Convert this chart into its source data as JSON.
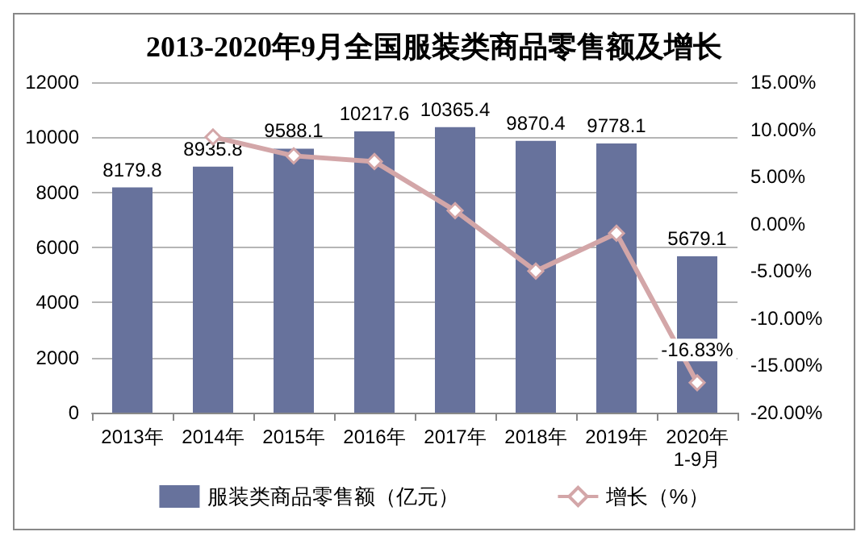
{
  "chart_data": {
    "type": "bar",
    "title": "2013-2020年9月全国服装类商品零售额及增长",
    "categories": [
      "2013年",
      "2014年",
      "2015年",
      "2016年",
      "2017年",
      "2018年",
      "2019年",
      "2020年\n1-9月"
    ],
    "series": [
      {
        "name": "服装类商品零售额（亿元）",
        "color": "#67729c",
        "values": [
          8179.8,
          8935.8,
          9588.1,
          10217.6,
          10365.4,
          9870.4,
          9778.1,
          5679.1
        ],
        "value_labels": [
          "8179.8",
          "8935.8",
          "9588.1",
          "10217.6",
          "10365.4",
          "9870.4",
          "9778.1",
          "5679.1"
        ]
      },
      {
        "name": "增长（%）",
        "type": "line",
        "axis": "y2",
        "color": "#d3a6a8",
        "marker": "diamond",
        "values": [
          null,
          9.2,
          7.2,
          6.6,
          1.4,
          -5.0,
          -1.0,
          -16.83
        ],
        "value_labels": [
          null,
          null,
          null,
          null,
          null,
          null,
          null,
          "-16.83%"
        ]
      }
    ],
    "ylim": [
      0,
      12000
    ],
    "yticks": [
      0,
      2000,
      4000,
      6000,
      8000,
      10000,
      12000
    ],
    "y2lim": [
      -20,
      15
    ],
    "y2ticks": [
      {
        "value": -20,
        "label": "-20.00%"
      },
      {
        "value": -15,
        "label": "-15.00%"
      },
      {
        "value": -10,
        "label": "-10.00%"
      },
      {
        "value": -5,
        "label": "-5.00%"
      },
      {
        "value": 0,
        "label": "0.00%"
      },
      {
        "value": 5,
        "label": "5.00%"
      },
      {
        "value": 10,
        "label": "10.00%"
      },
      {
        "value": 15,
        "label": "15.00%"
      }
    ],
    "grid": "y",
    "legend": "bottom"
  }
}
